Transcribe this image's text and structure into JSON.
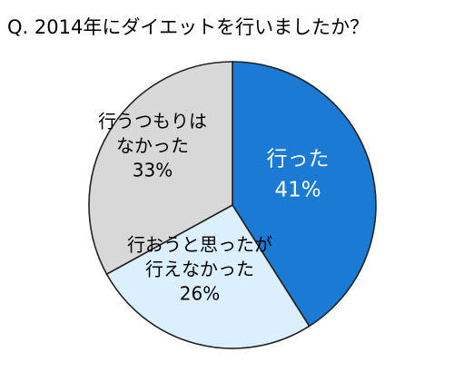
{
  "title": "Q. 2014年にダイエットを行いましたか？",
  "chart_data": {
    "type": "pie",
    "slices": [
      {
        "key": "did",
        "label_lines": [
          "行った",
          "41%"
        ],
        "value": 41,
        "color": "#1a7ad4",
        "text_color": "#ffffff"
      },
      {
        "key": "tried",
        "label_lines": [
          "行おうと思ったが",
          "行えなかった",
          "26%"
        ],
        "value": 26,
        "color": "#dcefff",
        "text_color": "#000000"
      },
      {
        "key": "not",
        "label_lines": [
          "行うつもりは",
          "なかった",
          "33%"
        ],
        "value": 33,
        "color": "#d8d8d8",
        "text_color": "#000000"
      }
    ]
  }
}
